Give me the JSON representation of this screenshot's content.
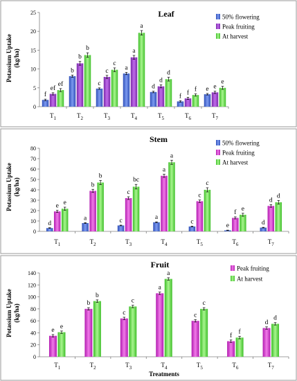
{
  "chart_data": [
    {
      "type": "bar",
      "title": "Leaf",
      "ylabel": "Potassium Uptake (kg/ha)",
      "xlabel": "",
      "ylim": [
        0,
        25
      ],
      "yticks": [
        0,
        5,
        10,
        15,
        20,
        25
      ],
      "categories": [
        "T1",
        "T2",
        "T3",
        "T4",
        "T5",
        "T6",
        "T7"
      ],
      "legend_position": "right",
      "grid": false,
      "series": [
        {
          "name": "50% flowering",
          "color": "#4F6FD0",
          "values": [
            1.8,
            8.1,
            4.8,
            8.8,
            3.9,
            1.4,
            3.3
          ],
          "errors": [
            0.2,
            0.3,
            0.2,
            0.3,
            0.2,
            0.2,
            0.2
          ],
          "letters": [
            "f",
            "b",
            "c",
            "a",
            "d",
            "f",
            "e"
          ]
        },
        {
          "name": "Peak fruiting",
          "color": "#9B3FCB",
          "values": [
            3.4,
            11.5,
            7.9,
            13.1,
            5.4,
            2.2,
            3.8
          ],
          "errors": [
            0.3,
            0.5,
            0.4,
            0.5,
            0.4,
            0.3,
            0.3
          ],
          "letters": [
            "ef",
            "b",
            "c",
            "a",
            "d",
            "f",
            "e"
          ]
        },
        {
          "name": "At harvest",
          "color": "#66DD44",
          "values": [
            4.4,
            13.7,
            9.8,
            19.6,
            7.3,
            3.1,
            5.0
          ],
          "errors": [
            0.4,
            0.6,
            0.5,
            0.6,
            0.5,
            0.3,
            0.4
          ],
          "letters": [
            "ef",
            "b",
            "c",
            "a",
            "d",
            "f",
            "e"
          ]
        }
      ]
    },
    {
      "type": "bar",
      "title": "Stem",
      "ylabel": "Potassium Uptake (kg/ha)",
      "xlabel": "",
      "ylim": [
        0,
        80
      ],
      "yticks": [
        0,
        10,
        20,
        30,
        40,
        50,
        60,
        70,
        80
      ],
      "categories": [
        "T1",
        "T2",
        "T3",
        "T4",
        "T5",
        "T6",
        "T7"
      ],
      "legend_position": "top-right",
      "grid": false,
      "series": [
        {
          "name": "50% flowering",
          "color": "#4F6FD0",
          "values": [
            3.2,
            8.0,
            5.7,
            8.8,
            4.7,
            1.0,
            3.6
          ],
          "errors": [
            0.3,
            0.4,
            0.3,
            0.4,
            0.3,
            0.2,
            0.3
          ],
          "letters": [
            "d",
            "a",
            "c",
            "a",
            "c",
            "e",
            "d"
          ]
        },
        {
          "name": "Peak fruiting",
          "color": "#CC33CC",
          "values": [
            19.2,
            39.0,
            32.0,
            53.5,
            29.0,
            13.0,
            24.5
          ],
          "errors": [
            1.0,
            1.5,
            1.3,
            1.5,
            1.2,
            1.0,
            1.3
          ],
          "letters": [
            "e",
            "b",
            "c",
            "a",
            "c",
            "f",
            "d"
          ]
        },
        {
          "name": "At harvest",
          "color": "#66DD44",
          "values": [
            21.8,
            47.0,
            43.0,
            66.5,
            40.0,
            16.0,
            28.0
          ],
          "errors": [
            1.5,
            2.0,
            2.2,
            2.0,
            2.0,
            1.4,
            1.8
          ],
          "letters": [
            "e",
            "b",
            "bc",
            "a",
            "c",
            "e",
            "d"
          ]
        }
      ]
    },
    {
      "type": "bar",
      "title": "Fruit",
      "ylabel": "Potassium Uptake (kg/ha)",
      "xlabel": "Treatments",
      "ylim": [
        0,
        140
      ],
      "yticks": [
        0,
        20,
        40,
        60,
        80,
        100,
        120,
        140
      ],
      "categories": [
        "T1",
        "T2",
        "T3",
        "T4",
        "T5",
        "T6",
        "T7"
      ],
      "legend_position": "top-right",
      "grid": false,
      "series": [
        {
          "name": "Peak fruiting",
          "color": "#E040C8",
          "values": [
            35.0,
            80.0,
            64.0,
            106.0,
            60.0,
            26.0,
            48.0
          ],
          "errors": [
            2.0,
            2.0,
            2.0,
            2.0,
            2.0,
            2.0,
            2.0
          ],
          "letters": [
            "e",
            "b",
            "c",
            "a",
            "c",
            "f",
            "d"
          ]
        },
        {
          "name": "At harvest",
          "color": "#66DD44",
          "values": [
            41.0,
            93.0,
            84.0,
            130.0,
            80.0,
            32.0,
            55.0
          ],
          "errors": [
            2.0,
            2.0,
            2.0,
            2.0,
            2.0,
            2.0,
            2.0
          ],
          "letters": [
            "e",
            "b",
            "c",
            "a",
            "c",
            "f",
            "d"
          ]
        }
      ]
    }
  ]
}
